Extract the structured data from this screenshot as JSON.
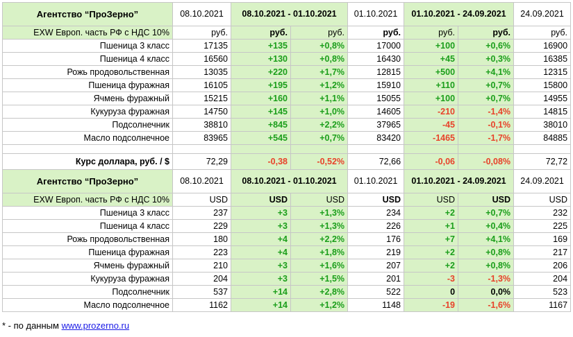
{
  "blocks": [
    {
      "agency": "Агентство “ПроЗерно”",
      "date_a": "08.10.2021",
      "range_ab": "08.10.2021 - 01.10.2021",
      "date_b": "01.10.2021",
      "range_bc": "01.10.2021 - 24.09.2021",
      "date_c": "24.09.2021",
      "unit_label": "EXW Европ. часть РФ с НДС 10%",
      "unit": [
        "руб.",
        "руб.",
        "руб.",
        "руб.",
        "руб.",
        "руб.",
        "руб."
      ],
      "rows": [
        {
          "name": "Пшеница 3 класс",
          "a": "17135",
          "dab": "+135",
          "pab": "+0,8%",
          "b": "17000",
          "dbc": "+100",
          "pbc": "+0,6%",
          "c": "16900"
        },
        {
          "name": "Пшеница 4 класс",
          "a": "16560",
          "dab": "+130",
          "pab": "+0,8%",
          "b": "16430",
          "dbc": "+45",
          "pbc": "+0,3%",
          "c": "16385"
        },
        {
          "name": "Рожь продовольственная",
          "a": "13035",
          "dab": "+220",
          "pab": "+1,7%",
          "b": "12815",
          "dbc": "+500",
          "pbc": "+4,1%",
          "c": "12315"
        },
        {
          "name": "Пшеница фуражная",
          "a": "16105",
          "dab": "+195",
          "pab": "+1,2%",
          "b": "15910",
          "dbc": "+110",
          "pbc": "+0,7%",
          "c": "15800"
        },
        {
          "name": "Ячмень фуражный",
          "a": "15215",
          "dab": "+160",
          "pab": "+1,1%",
          "b": "15055",
          "dbc": "+100",
          "pbc": "+0,7%",
          "c": "14955"
        },
        {
          "name": "Кукуруза фуражная",
          "a": "14750",
          "dab": "+145",
          "pab": "+1,0%",
          "b": "14605",
          "dbc": "-210",
          "pbc": "-1,4%",
          "c": "14815"
        },
        {
          "name": "Подсолнечник",
          "a": "38810",
          "dab": "+845",
          "pab": "+2,2%",
          "b": "37965",
          "dbc": "-45",
          "pbc": "-0,1%",
          "c": "38010"
        },
        {
          "name": "Масло подсолнечное",
          "a": "83965",
          "dab": "+545",
          "pab": "+0,7%",
          "b": "83420",
          "dbc": "-1465",
          "pbc": "-1,7%",
          "c": "84885"
        }
      ],
      "rate": {
        "name": "Курс доллара, руб. / $",
        "a": "72,29",
        "dab": "-0,38",
        "pab": "-0,52%",
        "b": "72,66",
        "dbc": "-0,06",
        "pbc": "-0,08%",
        "c": "72,72"
      }
    },
    {
      "agency": "Агентство “ПроЗерно”",
      "date_a": "08.10.2021",
      "range_ab": "08.10.2021 - 01.10.2021",
      "date_b": "01.10.2021",
      "range_bc": "01.10.2021 - 24.09.2021",
      "date_c": "24.09.2021",
      "unit_label": "EXW Европ. часть РФ с НДС 10%",
      "unit": [
        "USD",
        "USD",
        "USD",
        "USD",
        "USD",
        "USD",
        "USD"
      ],
      "rows": [
        {
          "name": "Пшеница 3 класс",
          "a": "237",
          "dab": "+3",
          "pab": "+1,3%",
          "b": "234",
          "dbc": "+2",
          "pbc": "+0,7%",
          "c": "232"
        },
        {
          "name": "Пшеница 4 класс",
          "a": "229",
          "dab": "+3",
          "pab": "+1,3%",
          "b": "226",
          "dbc": "+1",
          "pbc": "+0,4%",
          "c": "225"
        },
        {
          "name": "Рожь продовольственная",
          "a": "180",
          "dab": "+4",
          "pab": "+2,2%",
          "b": "176",
          "dbc": "+7",
          "pbc": "+4,1%",
          "c": "169"
        },
        {
          "name": "Пшеница фуражная",
          "a": "223",
          "dab": "+4",
          "pab": "+1,8%",
          "b": "219",
          "dbc": "+2",
          "pbc": "+0,8%",
          "c": "217"
        },
        {
          "name": "Ячмень фуражный",
          "a": "210",
          "dab": "+3",
          "pab": "+1,6%",
          "b": "207",
          "dbc": "+2",
          "pbc": "+0,8%",
          "c": "206"
        },
        {
          "name": "Кукуруза фуражная",
          "a": "204",
          "dab": "+3",
          "pab": "+1,5%",
          "b": "201",
          "dbc": "-3",
          "pbc": "-1,3%",
          "c": "204"
        },
        {
          "name": "Подсолнечник",
          "a": "537",
          "dab": "+14",
          "pab": "+2,8%",
          "b": "522",
          "dbc": "0",
          "pbc": "0,0%",
          "c": "523"
        },
        {
          "name": "Масло подсолнечное",
          "a": "1162",
          "dab": "+14",
          "pab": "+1,2%",
          "b": "1148",
          "dbc": "-19",
          "pbc": "-1,6%",
          "c": "1167"
        }
      ]
    }
  ],
  "footnote": {
    "prefix": "* - по данным ",
    "link": "www.prozerno.ru"
  },
  "colors": {
    "green_bg": "#d9f2c6",
    "positive": "#1b9e1b",
    "negative": "#e8422a",
    "link": "#1a1ae6"
  }
}
